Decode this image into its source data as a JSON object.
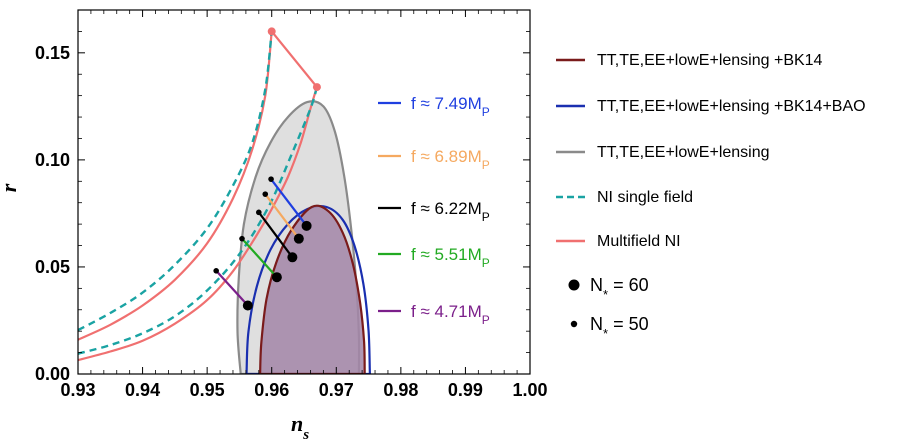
{
  "chart_data": {
    "type": "scatter",
    "xlabel": "n",
    "xlabel_sub": "s",
    "ylabel": "r",
    "xlim": [
      0.93,
      1.0
    ],
    "ylim": [
      0.0,
      0.17
    ],
    "grid": false,
    "x_ticks": [
      "0.93",
      "0.94",
      "0.95",
      "0.96",
      "0.97",
      "0.98",
      "0.99",
      "1.00"
    ],
    "y_ticks": [
      "0.00",
      "0.05",
      "0.10",
      "0.15"
    ],
    "contours": [
      {
        "name": "TT,TE,EE+lowE+lensing",
        "color": "#8a8a8a",
        "fill": "#d9d9d9",
        "points": [
          [
            0.9552,
            0.0
          ],
          [
            0.9547,
            0.02
          ],
          [
            0.9549,
            0.045
          ],
          [
            0.9557,
            0.07
          ],
          [
            0.9575,
            0.092
          ],
          [
            0.9598,
            0.108
          ],
          [
            0.9625,
            0.12
          ],
          [
            0.9655,
            0.127
          ],
          [
            0.968,
            0.125
          ],
          [
            0.9698,
            0.113
          ],
          [
            0.9712,
            0.093
          ],
          [
            0.9723,
            0.068
          ],
          [
            0.9731,
            0.042
          ],
          [
            0.9735,
            0.018
          ],
          [
            0.9735,
            0.0
          ]
        ]
      },
      {
        "name": "TT,TE,EE+lowE+lensing +BK14+BAO",
        "color": "#1a2fb0",
        "fill": "none",
        "points": [
          [
            0.9561,
            0.0
          ],
          [
            0.9564,
            0.02
          ],
          [
            0.9577,
            0.041
          ],
          [
            0.9598,
            0.058
          ],
          [
            0.9625,
            0.07
          ],
          [
            0.9655,
            0.077
          ],
          [
            0.9685,
            0.078
          ],
          [
            0.971,
            0.072
          ],
          [
            0.9728,
            0.06
          ],
          [
            0.9742,
            0.042
          ],
          [
            0.975,
            0.02
          ],
          [
            0.9752,
            0.0
          ]
        ]
      },
      {
        "name": "TT,TE,EE+lowE+lensing +BK14",
        "color": "#7a1b1b",
        "fill": "#a386a8",
        "points": [
          [
            0.9582,
            0.0
          ],
          [
            0.9584,
            0.015
          ],
          [
            0.9592,
            0.035
          ],
          [
            0.9607,
            0.052
          ],
          [
            0.963,
            0.067
          ],
          [
            0.9662,
            0.078
          ],
          [
            0.9688,
            0.076
          ],
          [
            0.971,
            0.066
          ],
          [
            0.9726,
            0.051
          ],
          [
            0.9737,
            0.033
          ],
          [
            0.9743,
            0.015
          ],
          [
            0.9744,
            0.0
          ]
        ]
      }
    ],
    "ni_single_field": {
      "name": "NI single field",
      "color": "#1aa3a3",
      "lines": [
        [
          [
            0.93,
            0.0205
          ],
          [
            0.935,
            0.0285
          ],
          [
            0.94,
            0.038
          ],
          [
            0.945,
            0.051
          ],
          [
            0.95,
            0.068
          ],
          [
            0.954,
            0.088
          ],
          [
            0.957,
            0.108
          ],
          [
            0.959,
            0.133
          ],
          [
            0.96,
            0.16
          ]
        ],
        [
          [
            0.93,
            0.0095
          ],
          [
            0.935,
            0.0135
          ],
          [
            0.94,
            0.019
          ],
          [
            0.945,
            0.027
          ],
          [
            0.95,
            0.039
          ],
          [
            0.955,
            0.056
          ],
          [
            0.9595,
            0.078
          ],
          [
            0.963,
            0.102
          ],
          [
            0.966,
            0.124
          ],
          [
            0.967,
            0.134
          ]
        ]
      ]
    },
    "multifield_ni": {
      "name": "Multifield NI",
      "color": "#f07070",
      "lines": [
        [
          [
            0.93,
            0.016
          ],
          [
            0.935,
            0.023
          ],
          [
            0.94,
            0.032
          ],
          [
            0.945,
            0.044
          ],
          [
            0.95,
            0.061
          ],
          [
            0.954,
            0.082
          ],
          [
            0.957,
            0.105
          ],
          [
            0.959,
            0.13
          ],
          [
            0.96,
            0.16
          ]
        ],
        [
          [
            0.93,
            0.0065
          ],
          [
            0.935,
            0.0105
          ],
          [
            0.94,
            0.0155
          ],
          [
            0.945,
            0.0235
          ],
          [
            0.95,
            0.0345
          ],
          [
            0.954,
            0.048
          ],
          [
            0.9575,
            0.064
          ],
          [
            0.96,
            0.077
          ],
          [
            0.9625,
            0.092
          ],
          [
            0.9645,
            0.108
          ],
          [
            0.966,
            0.124
          ],
          [
            0.967,
            0.134
          ]
        ]
      ],
      "segment": [
        [
          0.96,
          0.16
        ],
        [
          0.967,
          0.134
        ]
      ],
      "endpoints": [
        [
          0.96,
          0.16
        ],
        [
          0.967,
          0.134
        ]
      ]
    },
    "coupling_lines": [
      {
        "label": "f ≈ 7.49M",
        "sub": "P",
        "color": "#1f3fe0",
        "n50": [
          0.9599,
          0.091
        ],
        "n60": [
          0.9654,
          0.0692
        ]
      },
      {
        "label": "f ≈ 6.89M",
        "sub": "P",
        "color": "#f5a960",
        "n50": [
          0.959,
          0.084
        ],
        "n60": [
          0.9642,
          0.0632
        ]
      },
      {
        "label": "f ≈ 6.22M",
        "sub": "P",
        "color": "#000000",
        "n50": [
          0.958,
          0.0755
        ],
        "n60": [
          0.9632,
          0.0545
        ]
      },
      {
        "label": "f ≈ 5.51M",
        "sub": "P",
        "color": "#22aa22",
        "n50": [
          0.9554,
          0.0632
        ],
        "n60": [
          0.9608,
          0.0452
        ]
      },
      {
        "label": "f ≈ 4.71M",
        "sub": "P",
        "color": "#7b1f8a",
        "n50": [
          0.9514,
          0.0482
        ],
        "n60": [
          0.9563,
          0.032
        ]
      }
    ],
    "markers": [
      {
        "label": "N",
        "sub": "*",
        "value": "= 60",
        "size": "large"
      },
      {
        "label": "N",
        "sub": "*",
        "value": "= 50",
        "size": "small"
      }
    ]
  },
  "legend": {
    "items": [
      {
        "label": "TT,TE,EE+lowE+lensing +BK14",
        "color": "#7a1b1b",
        "style": "solid"
      },
      {
        "label": "TT,TE,EE+lowE+lensing +BK14+BAO",
        "color": "#1a2fb0",
        "style": "solid"
      },
      {
        "label": "TT,TE,EE+lowE+lensing",
        "color": "#8a8a8a",
        "style": "solid"
      },
      {
        "label": "NI single field",
        "color": "#1aa3a3",
        "style": "dashed"
      },
      {
        "label": "Multifield NI",
        "color": "#f07070",
        "style": "solid"
      }
    ]
  }
}
